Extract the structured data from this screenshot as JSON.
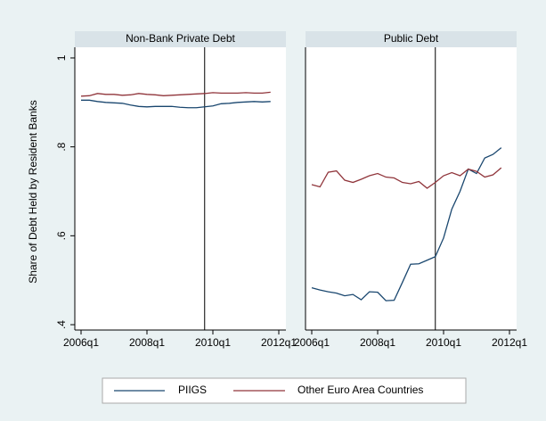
{
  "chart_data": [
    {
      "type": "line",
      "title": "Non-Bank Private Debt",
      "y_label": "Share of Debt Held by Resident Banks",
      "x": [
        "2006q1",
        "2006q2",
        "2006q3",
        "2006q4",
        "2007q1",
        "2007q2",
        "2007q3",
        "2007q4",
        "2008q1",
        "2008q2",
        "2008q3",
        "2008q4",
        "2009q1",
        "2009q2",
        "2009q3",
        "2009q4",
        "2010q1",
        "2010q2",
        "2010q3",
        "2010q4",
        "2011q1",
        "2011q2",
        "2011q3",
        "2011q4"
      ],
      "xlim": [
        "2006q1",
        "2012q1"
      ],
      "xticks": [
        "2006q1",
        "2008q1",
        "2010q1",
        "2012q1"
      ],
      "ylim": [
        0.388,
        1.024
      ],
      "yticks": [
        {
          "value": 0.4,
          "label": ".4"
        },
        {
          "value": 0.6,
          "label": ".6"
        },
        {
          "value": 0.8,
          "label": ".8"
        },
        1
      ],
      "reference_x": "2009q4",
      "legend": "bottom",
      "series": [
        {
          "name": "PIIGS",
          "color": "#1a476f",
          "values": [
            0.905,
            0.905,
            0.902,
            0.9,
            0.899,
            0.898,
            0.894,
            0.891,
            0.89,
            0.891,
            0.891,
            0.891,
            0.889,
            0.888,
            0.888,
            0.89,
            0.892,
            0.897,
            0.898,
            0.9,
            0.901,
            0.902,
            0.901,
            0.902
          ]
        },
        {
          "name": "Other Euro Area Countries",
          "color": "#90353b",
          "values": [
            0.914,
            0.915,
            0.92,
            0.918,
            0.918,
            0.916,
            0.917,
            0.92,
            0.918,
            0.917,
            0.915,
            0.916,
            0.917,
            0.918,
            0.919,
            0.92,
            0.922,
            0.921,
            0.921,
            0.921,
            0.922,
            0.921,
            0.921,
            0.923
          ]
        }
      ]
    },
    {
      "type": "line",
      "title": "Public Debt",
      "x": [
        "2006q1",
        "2006q2",
        "2006q3",
        "2006q4",
        "2007q1",
        "2007q2",
        "2007q3",
        "2007q4",
        "2008q1",
        "2008q2",
        "2008q3",
        "2008q4",
        "2009q1",
        "2009q2",
        "2009q3",
        "2009q4",
        "2010q1",
        "2010q2",
        "2010q3",
        "2010q4",
        "2011q1",
        "2011q2",
        "2011q3",
        "2011q4"
      ],
      "xlim": [
        "2006q1",
        "2012q1"
      ],
      "xticks": [
        "2006q1",
        "2008q1",
        "2010q1",
        "2012q1"
      ],
      "ylim": [
        0.388,
        1.024
      ],
      "reference_x": "2009q4",
      "series": [
        {
          "color": "#1a476f",
          "values": [
            0.483,
            0.478,
            0.474,
            0.471,
            0.465,
            0.468,
            0.456,
            0.474,
            0.473,
            0.454,
            0.455,
            0.495,
            0.536,
            0.537,
            0.545,
            0.553,
            0.595,
            0.66,
            0.7,
            0.75,
            0.74,
            0.775,
            0.783,
            0.798
          ]
        },
        {
          "color": "#90353b",
          "values": [
            0.715,
            0.71,
            0.743,
            0.746,
            0.725,
            0.72,
            0.727,
            0.735,
            0.74,
            0.732,
            0.73,
            0.72,
            0.717,
            0.722,
            0.707,
            0.72,
            0.735,
            0.742,
            0.735,
            0.75,
            0.745,
            0.732,
            0.737,
            0.753
          ]
        }
      ]
    }
  ]
}
